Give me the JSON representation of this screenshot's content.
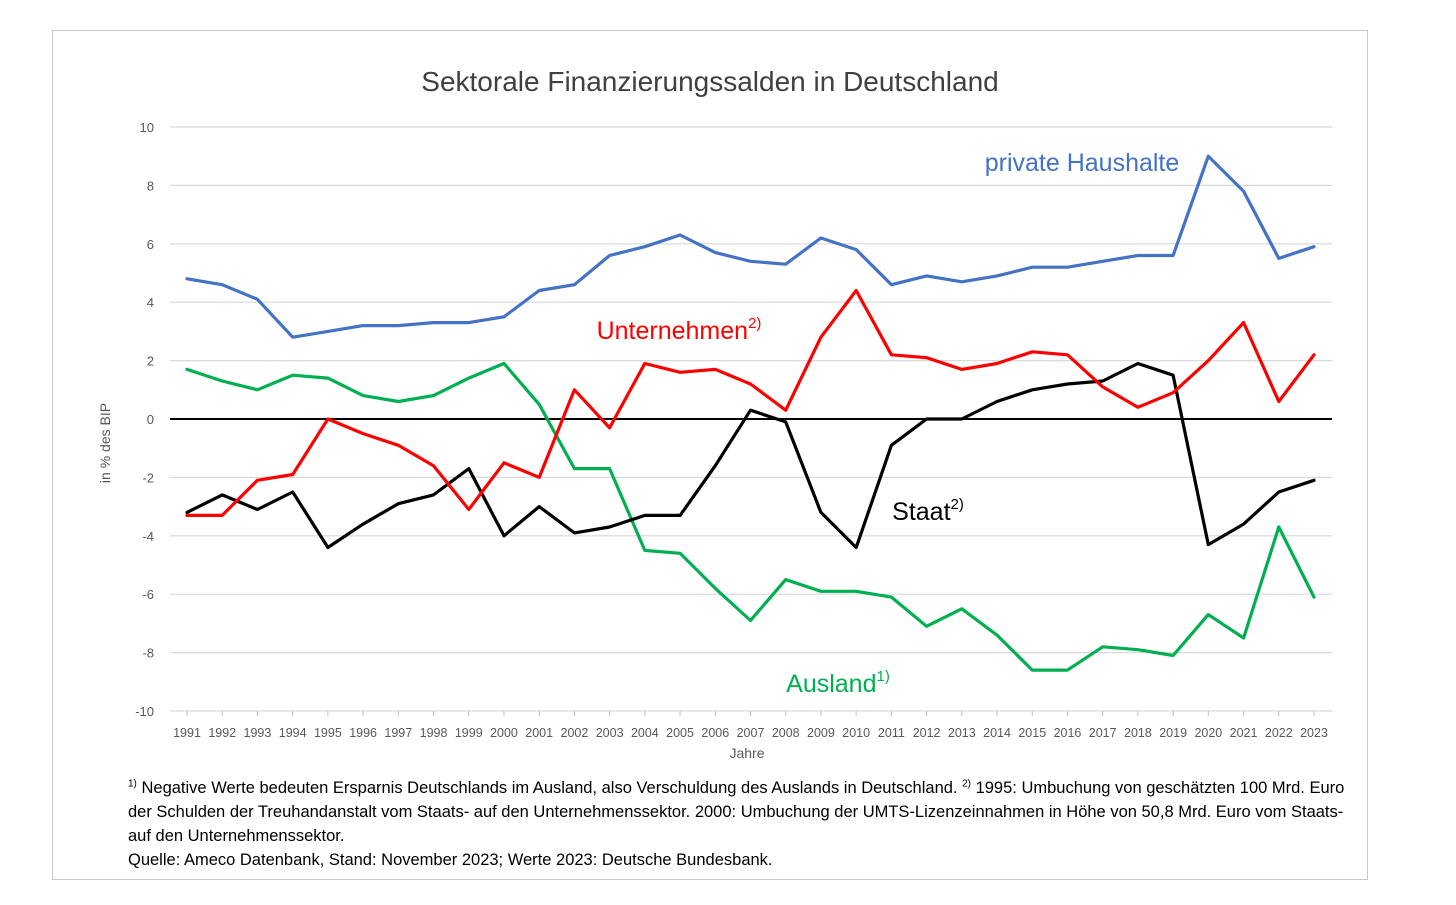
{
  "chart_data": {
    "type": "line",
    "title": "Sektorale Finanzierungssalden in Deutschland",
    "xlabel": "Jahre",
    "ylabel": "in % des BIP",
    "ylim": [
      -10,
      10
    ],
    "yticks": [
      10,
      8,
      6,
      4,
      2,
      0,
      -2,
      -4,
      -6,
      -8,
      -10
    ],
    "grid": true,
    "x": [
      "1991",
      "1992",
      "1993",
      "1994",
      "1995",
      "1996",
      "1997",
      "1998",
      "1999",
      "2000",
      "2001",
      "2002",
      "2003",
      "2004",
      "2005",
      "2006",
      "2007",
      "2008",
      "2009",
      "2010",
      "2011",
      "2012",
      "2013",
      "2014",
      "2015",
      "2016",
      "2017",
      "2018",
      "2019",
      "2020",
      "2021",
      "2022",
      "2023"
    ],
    "series": [
      {
        "name": "private Haushalte",
        "sup": "",
        "color": "#4472c4",
        "values": [
          4.8,
          4.6,
          4.1,
          2.8,
          3.0,
          3.2,
          3.2,
          3.3,
          3.3,
          3.5,
          4.4,
          4.6,
          5.6,
          5.9,
          6.3,
          5.7,
          5.4,
          5.3,
          6.2,
          5.8,
          4.6,
          4.9,
          4.7,
          4.9,
          5.2,
          5.2,
          5.4,
          5.6,
          5.6,
          9.0,
          7.8,
          5.5,
          5.9
        ]
      },
      {
        "name": "Unternehmen",
        "sup": "2)",
        "color": "#ff0000",
        "values": [
          -3.3,
          -3.3,
          -2.1,
          -1.9,
          0.0,
          -0.5,
          -0.9,
          -1.6,
          -3.1,
          -1.5,
          -2.0,
          1.0,
          -0.3,
          1.9,
          1.6,
          1.7,
          1.2,
          0.3,
          2.8,
          4.4,
          2.2,
          2.1,
          1.7,
          1.9,
          2.3,
          2.2,
          1.1,
          0.4,
          0.9,
          2.0,
          3.3,
          0.6,
          2.2
        ]
      },
      {
        "name": "Staat",
        "sup": "2)",
        "color": "#000000",
        "values": [
          -3.2,
          -2.6,
          -3.1,
          -2.5,
          -4.4,
          -3.6,
          -2.9,
          -2.6,
          -1.7,
          -4.0,
          -3.0,
          -3.9,
          -3.7,
          -3.3,
          -3.3,
          -1.6,
          0.3,
          -0.1,
          -3.2,
          -4.4,
          -0.9,
          0.0,
          0.0,
          0.6,
          1.0,
          1.2,
          1.3,
          1.9,
          1.5,
          -4.3,
          -3.6,
          -2.5,
          -2.1
        ]
      },
      {
        "name": "Ausland",
        "sup": "1)",
        "color": "#00b050",
        "values": [
          1.7,
          1.3,
          1.0,
          1.5,
          1.4,
          0.8,
          0.6,
          0.8,
          1.4,
          1.9,
          0.5,
          -1.7,
          -1.7,
          -4.5,
          -4.6,
          -5.8,
          -6.9,
          -5.5,
          -5.9,
          -5.9,
          -6.1,
          -7.1,
          -6.5,
          -7.4,
          -8.6,
          -8.6,
          -7.8,
          -7.9,
          -8.1,
          -6.7,
          -7.5,
          -3.7,
          -6.1
        ]
      }
    ]
  },
  "footnote": {
    "line1_sup1": "1)",
    "line1_text": " Negative Werte bedeuten Ersparnis Deutschlands im Ausland, also Verschuldung des Auslands in Deutschland. ",
    "line1_sup2": "2)",
    "line1_text2": " 1995: Umbuchung von geschätzten 100 Mrd. Euro der Schulden der Treuhandanstalt vom Staats- auf den Unternehmenssektor. 2000: Umbuchung der UMTS-Lizenzeinnahmen in Höhe von 50,8 Mrd. Euro vom Staats- auf den Unternehmenssektor.",
    "source": "Quelle: Ameco Datenbank, Stand: November 2023; Werte 2023: Deutsche Bundesbank."
  }
}
